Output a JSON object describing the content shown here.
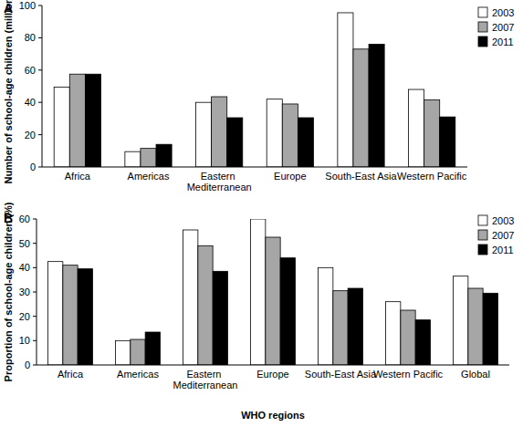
{
  "chart_data": [
    {
      "type": "bar",
      "title": "A",
      "y_label": "Number of school-age children (millions)",
      "categories": [
        "Africa",
        "Americas",
        "Eastern Mediterranean",
        "Europe",
        "South-East Asia",
        "Western Pacific"
      ],
      "series": [
        {
          "name": "2003",
          "color": "#ffffff",
          "values": [
            49.5,
            9.5,
            40,
            42,
            95.5,
            48
          ]
        },
        {
          "name": "2007",
          "color": "#a6a6a6",
          "values": [
            57.5,
            11.5,
            43.5,
            39,
            73,
            41.5
          ]
        },
        {
          "name": "2011",
          "color": "#000000",
          "values": [
            57.5,
            14,
            30.5,
            30.5,
            76,
            31
          ]
        }
      ],
      "ylim": [
        0,
        100
      ],
      "yticks": [
        0,
        20,
        40,
        60,
        80,
        100
      ],
      "grid": false,
      "legend": "upper right"
    },
    {
      "type": "bar",
      "title": "B",
      "y_label": "Proportion of school-age children (%)",
      "x_label": "WHO regions",
      "categories": [
        "Africa",
        "Americas",
        "Eastern Mediterranean",
        "Europe",
        "South-East Asia",
        "Western Pacific",
        "Global"
      ],
      "series": [
        {
          "name": "2003",
          "color": "#ffffff",
          "values": [
            42.5,
            10,
            55.5,
            60,
            40,
            26,
            36.5
          ]
        },
        {
          "name": "2007",
          "color": "#a6a6a6",
          "values": [
            41,
            10.5,
            49,
            52.5,
            30.5,
            22.5,
            31.5
          ]
        },
        {
          "name": "2011",
          "color": "#000000",
          "values": [
            39.5,
            13.5,
            38.5,
            44,
            31.5,
            18.5,
            29.5
          ]
        }
      ],
      "ylim": [
        0,
        60
      ],
      "yticks": [
        0,
        10,
        20,
        30,
        40,
        50,
        60
      ],
      "grid": false,
      "legend": "upper right"
    }
  ]
}
